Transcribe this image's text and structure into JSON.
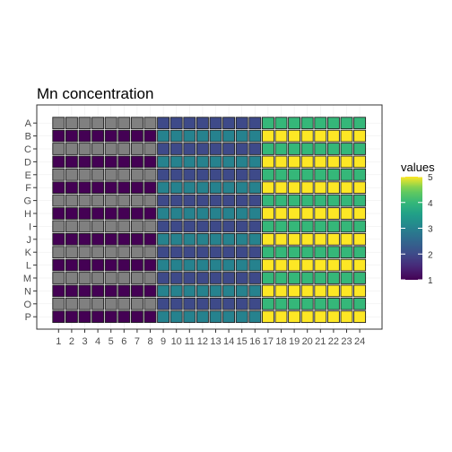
{
  "chart_data": {
    "type": "heatmap",
    "title": "Mn concentration",
    "xlabel": "",
    "ylabel": "",
    "x": [
      1,
      2,
      3,
      4,
      5,
      6,
      7,
      8,
      9,
      10,
      11,
      12,
      13,
      14,
      15,
      16,
      17,
      18,
      19,
      20,
      21,
      22,
      23,
      24
    ],
    "x_tick_labels": [
      "1",
      "2",
      "3",
      "4",
      "5",
      "6",
      "7",
      "8",
      "9",
      "10",
      "11",
      "12",
      "13",
      "14",
      "15",
      "16",
      "17",
      "18",
      "19",
      "20",
      "21",
      "22",
      "23",
      "24"
    ],
    "rows": [
      "A",
      "B",
      "C",
      "D",
      "E",
      "F",
      "G",
      "H",
      "I",
      "J",
      "K",
      "L",
      "M",
      "N",
      "O",
      "P"
    ],
    "column_groups": [
      {
        "columns": [
          1,
          2,
          3,
          4,
          5,
          6,
          7,
          8
        ],
        "odd_row_value": null,
        "even_row_value": 1
      },
      {
        "columns": [
          9,
          10,
          11,
          12,
          13,
          14,
          15,
          16
        ],
        "odd_row_value": 2,
        "even_row_value": 3
      },
      {
        "columns": [
          17,
          18,
          19,
          20,
          21,
          22,
          23,
          24
        ],
        "odd_row_value": 4,
        "even_row_value": 5
      }
    ],
    "na_color": "#808080",
    "grid": true,
    "legend": {
      "title": "values",
      "placement": "right",
      "breaks": [
        "1",
        "2",
        "3",
        "4",
        "5"
      ],
      "range": [
        1,
        5
      ],
      "scale": "viridis"
    }
  }
}
